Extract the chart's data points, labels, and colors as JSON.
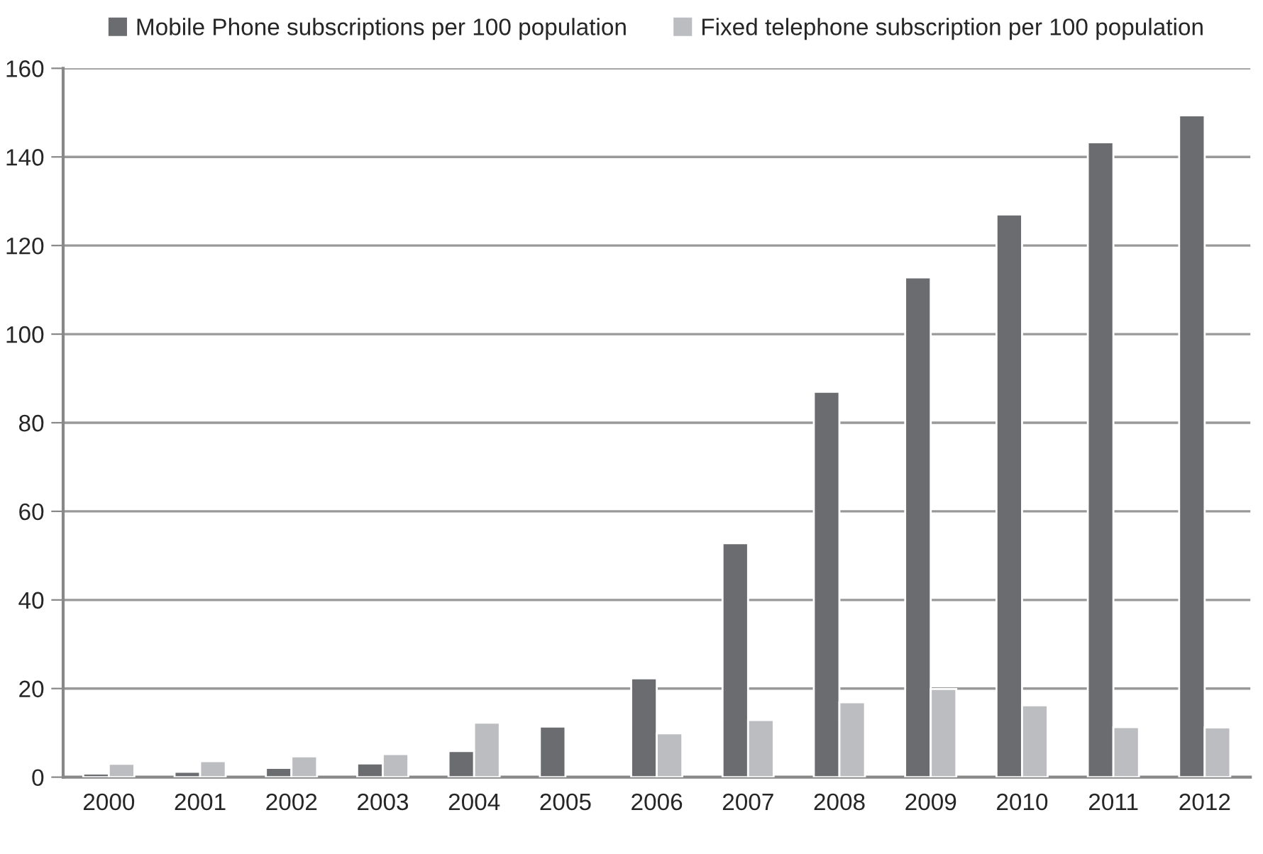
{
  "chart_data": {
    "type": "bar",
    "categories": [
      "2000",
      "2001",
      "2002",
      "2003",
      "2004",
      "2005",
      "2006",
      "2007",
      "2008",
      "2009",
      "2010",
      "2011",
      "2012"
    ],
    "series": [
      {
        "name": "Mobile Phone subscriptions per 100 population",
        "color": "#6b6c70",
        "values": [
          0.8,
          1.2,
          2.1,
          3.1,
          5.9,
          11.4,
          22.3,
          52.8,
          87.0,
          112.8,
          127.0,
          143.3,
          149.4
        ]
      },
      {
        "name": "Fixed telephone subscription per 100 population",
        "color": "#bcbdc1",
        "values": [
          3.0,
          3.6,
          4.7,
          5.2,
          12.3,
          null,
          9.9,
          12.9,
          16.9,
          19.9,
          16.2,
          11.3,
          11.2
        ]
      }
    ],
    "ylim": [
      0,
      160
    ],
    "yticks": [
      0,
      20,
      40,
      60,
      80,
      100,
      120,
      140,
      160
    ],
    "grid": "y",
    "legend": "top"
  }
}
